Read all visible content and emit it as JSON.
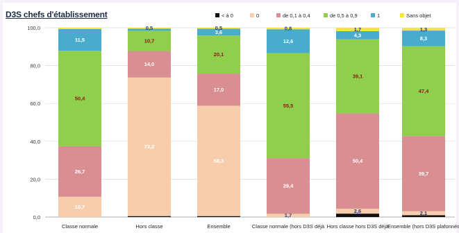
{
  "chart_data": {
    "type": "bar",
    "stacked": true,
    "title": "D3S chefs d'établissement",
    "ylim": [
      0,
      100
    ],
    "yticks": [
      "0,0",
      "20,0",
      "40,0",
      "60,0",
      "80,0",
      "100,0"
    ],
    "legend_position": "top",
    "categories": [
      "Classe normale",
      "Hors classe",
      "Ensemble",
      "Classe normale (hors D3S déjà",
      "Hors classe hors D3S déjà",
      "Ensemble (hors D3S plafonnés"
    ],
    "series": [
      {
        "name": "< à 0",
        "color": "#111111",
        "values": [
          0,
          0.5,
          0.5,
          0,
          1.8,
          1.0
        ],
        "labels": [
          "",
          "",
          "",
          "",
          "",
          ""
        ]
      },
      {
        "name": "0",
        "color": "#f8cdac",
        "values": [
          10.7,
          73.2,
          58.3,
          1.7,
          2.6,
          2.1
        ],
        "labels": [
          "10,7",
          "73,2",
          "58,3",
          "1,7",
          "2,6",
          "2,1"
        ]
      },
      {
        "name": "de 0,1 à 0,4",
        "color": "#d98e92",
        "values": [
          26.7,
          14.0,
          17.0,
          29.4,
          50.4,
          39.7
        ],
        "labels": [
          "26,7",
          "14,0",
          "17,0",
          "29,4",
          "50,4",
          "39,7"
        ]
      },
      {
        "name": "de 0,5 à 0,9",
        "color": "#8fcf4c",
        "values": [
          50.4,
          10.7,
          20.1,
          55.5,
          39.1,
          47.4
        ],
        "labels": [
          "50,4",
          "10,7",
          "20,1",
          "55,5",
          "39,1",
          "47,4"
        ]
      },
      {
        "name": "1",
        "color": "#4aaccd",
        "values": [
          11.5,
          1.1,
          3.6,
          12.6,
          4.3,
          8.3
        ],
        "labels": [
          "11,5",
          "",
          "3,6",
          "12,6",
          "4,3",
          "8,3"
        ]
      },
      {
        "name": "Sans objet",
        "color": "#f3e53a",
        "values": [
          0.7,
          0.5,
          0.5,
          0.8,
          1.7,
          1.3
        ],
        "labels": [
          "",
          "0,5",
          "0,5",
          "0,8",
          "1,7",
          "1,3"
        ]
      }
    ]
  }
}
